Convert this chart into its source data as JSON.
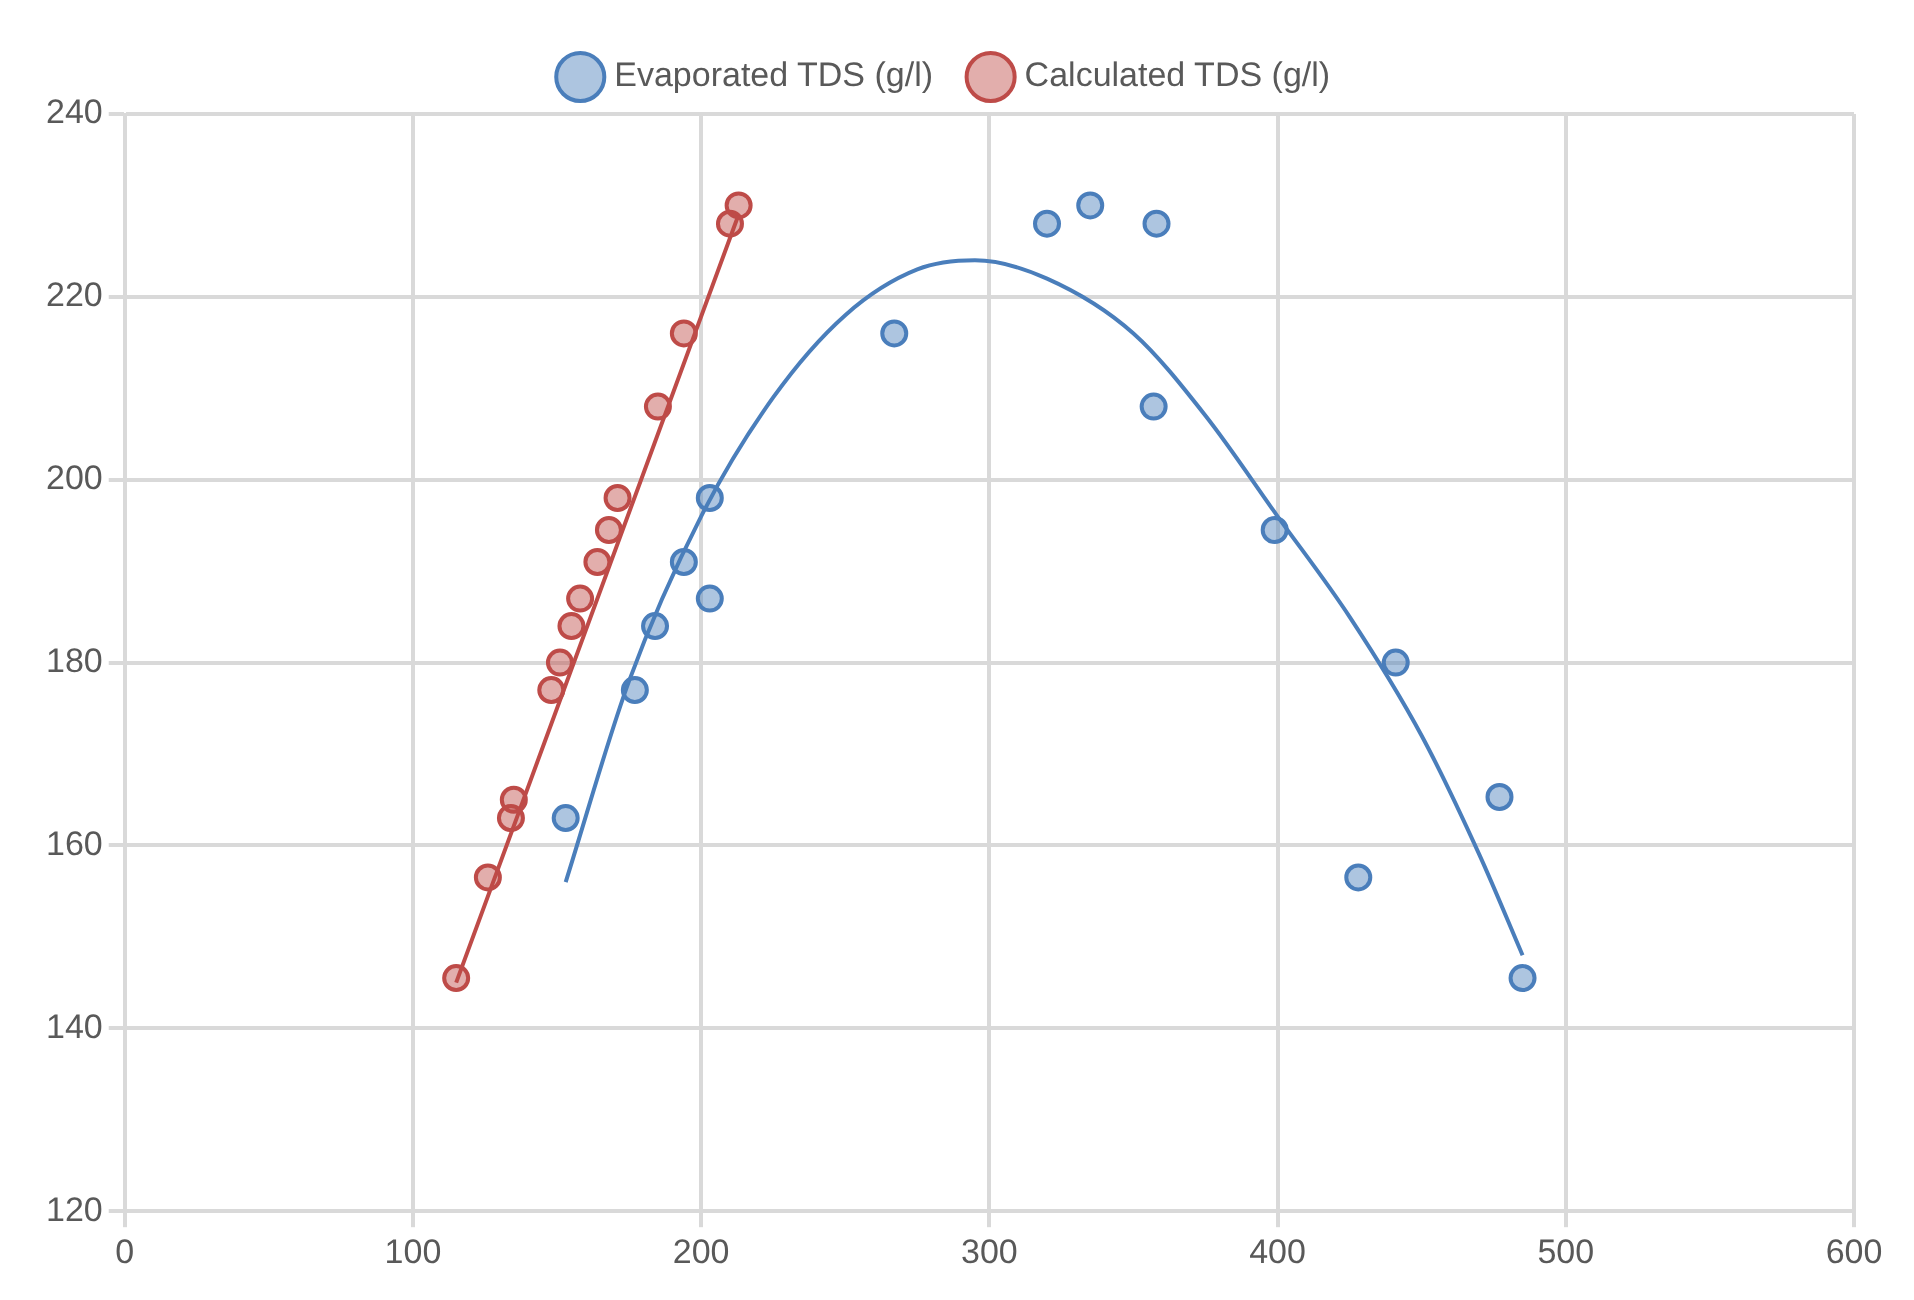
{
  "chart_data": {
    "type": "scatter",
    "xlim": [
      0,
      600
    ],
    "xticks": [
      0,
      100,
      200,
      300,
      400,
      500,
      600
    ],
    "ylim": [
      120,
      240
    ],
    "yticks": [
      120,
      140,
      160,
      180,
      200,
      220,
      240
    ],
    "grid": true,
    "legend": "top",
    "marker": "circle",
    "series": [
      {
        "name": "Evaporated TDS (g/l)",
        "color": "#4a7ebb",
        "x": [
          153,
          177,
          184,
          194,
          203,
          203,
          267,
          320,
          335,
          358,
          357,
          399,
          441,
          428,
          477,
          485
        ],
        "values": [
          163,
          177,
          184,
          191,
          198,
          187,
          216,
          228,
          230,
          228,
          208,
          194.5,
          180,
          156.5,
          165.3,
          145.5
        ]
      },
      {
        "name": "Calculated TDS (g/l)",
        "color": "#be4b48",
        "x": [
          115,
          126,
          134,
          135,
          148,
          151,
          155,
          158,
          164,
          168,
          171,
          185,
          194,
          210,
          213
        ],
        "values": [
          145.5,
          156.5,
          163,
          165,
          177,
          180,
          184,
          187,
          191,
          194.5,
          198,
          208,
          216,
          228,
          230
        ]
      },
      {
        "type": "line",
        "marker": "none",
        "color": "#4a7ebb",
        "x": [
          153,
          175,
          200,
          225,
          250,
          275,
          295,
          320,
          350,
          375,
          400,
          425,
          450,
          470,
          485
        ],
        "values": [
          156,
          178,
          196,
          209,
          218,
          223,
          224,
          222,
          216,
          207,
          196,
          185,
          172,
          159,
          148
        ]
      },
      {
        "type": "line",
        "marker": "none",
        "color": "#be4b48",
        "x": [
          115,
          213
        ],
        "values": [
          145,
          229
        ]
      }
    ]
  }
}
